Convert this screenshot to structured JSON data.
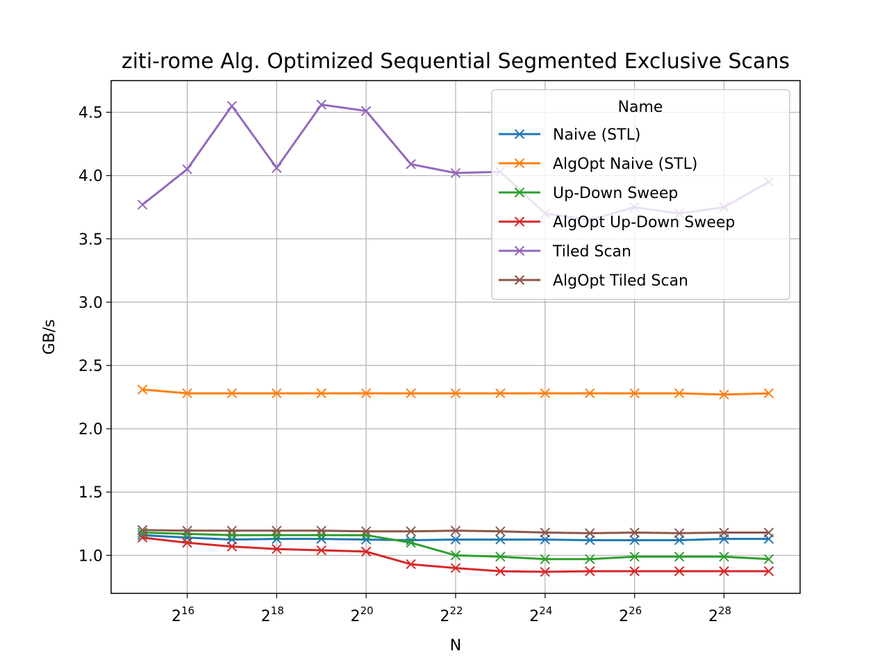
{
  "chart_data": {
    "type": "line",
    "title": "ziti-rome Alg. Optimized Sequential Segmented Exclusive Scans",
    "xlabel": "N",
    "ylabel": "GB/s",
    "x_scale": "log2",
    "x_exponents": [
      15,
      16,
      17,
      18,
      19,
      20,
      21,
      22,
      23,
      24,
      25,
      26,
      27,
      28,
      29
    ],
    "x_tick_exponents": [
      16,
      18,
      20,
      22,
      24,
      26,
      28
    ],
    "x_tick_base": "2",
    "xlim_exponents": [
      14.3,
      29.7
    ],
    "ylim": [
      0.7,
      4.75
    ],
    "y_ticks": [
      "1.0",
      "1.5",
      "2.0",
      "2.5",
      "3.0",
      "3.5",
      "4.0",
      "4.5"
    ],
    "grid": true,
    "legend": {
      "title": "Name",
      "placement": "top-right"
    },
    "marker": "x",
    "series": [
      {
        "name": "Naive (STL)",
        "color": "#1f77b4",
        "values": [
          1.16,
          1.14,
          1.125,
          1.13,
          1.13,
          1.125,
          1.12,
          1.125,
          1.125,
          1.125,
          1.12,
          1.12,
          1.12,
          1.13,
          1.13
        ]
      },
      {
        "name": "AlgOpt Naive (STL)",
        "color": "#ff7f0e",
        "values": [
          2.31,
          2.28,
          2.28,
          2.28,
          2.28,
          2.28,
          2.28,
          2.28,
          2.28,
          2.28,
          2.28,
          2.28,
          2.28,
          2.27,
          2.28
        ]
      },
      {
        "name": "Up-Down Sweep",
        "color": "#2ca02c",
        "values": [
          1.18,
          1.17,
          1.16,
          1.16,
          1.16,
          1.16,
          1.1,
          1.0,
          0.99,
          0.97,
          0.97,
          0.99,
          0.99,
          0.99,
          0.97
        ]
      },
      {
        "name": "AlgOpt Up-Down Sweep",
        "color": "#d62728",
        "values": [
          1.14,
          1.1,
          1.07,
          1.05,
          1.04,
          1.03,
          0.93,
          0.9,
          0.875,
          0.87,
          0.875,
          0.875,
          0.875,
          0.875,
          0.875
        ]
      },
      {
        "name": "Tiled Scan",
        "color": "#9467bd",
        "values": [
          3.77,
          4.05,
          4.55,
          4.06,
          4.56,
          4.51,
          4.09,
          4.02,
          4.03,
          3.7,
          3.65,
          3.75,
          3.7,
          3.75,
          3.95
        ]
      },
      {
        "name": "AlgOpt Tiled Scan",
        "color": "#8c564b",
        "values": [
          1.2,
          1.195,
          1.195,
          1.195,
          1.195,
          1.19,
          1.19,
          1.195,
          1.19,
          1.18,
          1.175,
          1.18,
          1.175,
          1.18,
          1.18
        ]
      }
    ]
  }
}
